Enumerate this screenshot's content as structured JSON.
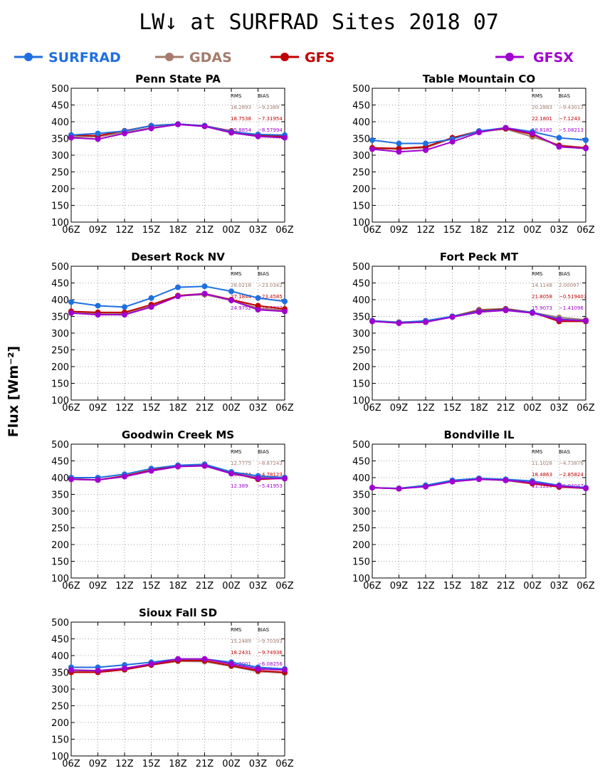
{
  "title": "LW↓ at SURFRAD Sites     2018 07",
  "ylabel": "Flux [Wm⁻²]",
  "series_colors": {
    "SURFRAD": "#1f6fe0",
    "GDAS": "#a47b6c",
    "GFS": "#c00000",
    "GFSX": "#a000d0"
  },
  "legend": [
    "SURFRAD",
    "GDAS",
    "GFS",
    "GFSX"
  ],
  "stats_headers": [
    "RMS",
    "BIAS"
  ],
  "chart_data": [
    {
      "type": "line",
      "title": "Penn State PA",
      "categories": [
        "06Z",
        "09Z",
        "12Z",
        "15Z",
        "18Z",
        "21Z",
        "00Z",
        "03Z",
        "06Z"
      ],
      "ylim": [
        100,
        500
      ],
      "yticks": [
        100,
        150,
        200,
        250,
        300,
        350,
        400,
        450,
        500
      ],
      "grid": true,
      "series": [
        {
          "name": "SURFRAD",
          "values": [
            360,
            365,
            372,
            388,
            393,
            388,
            370,
            362,
            360
          ]
        },
        {
          "name": "GDAS",
          "values": [
            355,
            355,
            368,
            382,
            392,
            387,
            370,
            357,
            354
          ]
        },
        {
          "name": "GFS",
          "values": [
            360,
            358,
            373,
            388,
            393,
            388,
            372,
            358,
            357
          ]
        },
        {
          "name": "GFSX",
          "values": [
            352,
            348,
            365,
            380,
            392,
            386,
            367,
            356,
            352
          ]
        }
      ],
      "stats": [
        {
          "rms": "18.2893",
          "bias": "−9.2389"
        },
        {
          "rms": "18.7538",
          "bias": "−7.31954"
        },
        {
          "rms": "15.8854",
          "bias": "−8.57994"
        }
      ]
    },
    {
      "type": "line",
      "title": "Table Mountain CO",
      "categories": [
        "06Z",
        "09Z",
        "12Z",
        "15Z",
        "18Z",
        "21Z",
        "00Z",
        "03Z",
        "06Z"
      ],
      "ylim": [
        100,
        500
      ],
      "yticks": [
        100,
        150,
        200,
        250,
        300,
        350,
        400,
        450,
        500
      ],
      "grid": true,
      "series": [
        {
          "name": "SURFRAD",
          "values": [
            345,
            335,
            335,
            348,
            372,
            382,
            370,
            352,
            345
          ]
        },
        {
          "name": "GDAS",
          "values": [
            320,
            318,
            322,
            350,
            370,
            378,
            355,
            330,
            322
          ]
        },
        {
          "name": "GFS",
          "values": [
            322,
            320,
            325,
            352,
            372,
            380,
            362,
            328,
            322
          ]
        },
        {
          "name": "GFSX",
          "values": [
            318,
            310,
            315,
            340,
            368,
            382,
            365,
            325,
            320
          ]
        }
      ],
      "stats": [
        {
          "rms": "20.2883",
          "bias": "−9.43013"
        },
        {
          "rms": "22.1801",
          "bias": "−7.1243"
        },
        {
          "rms": "18.8182",
          "bias": "−5.08213"
        }
      ]
    },
    {
      "type": "line",
      "title": "Desert Rock NV",
      "categories": [
        "06Z",
        "09Z",
        "12Z",
        "15Z",
        "18Z",
        "21Z",
        "00Z",
        "03Z",
        "06Z"
      ],
      "ylim": [
        100,
        500
      ],
      "yticks": [
        100,
        150,
        200,
        250,
        300,
        350,
        400,
        450,
        500
      ],
      "grid": true,
      "series": [
        {
          "name": "SURFRAD",
          "values": [
            393,
            382,
            378,
            405,
            437,
            440,
            425,
            405,
            395
          ]
        },
        {
          "name": "GDAS",
          "values": [
            365,
            358,
            358,
            380,
            412,
            415,
            398,
            375,
            368
          ]
        },
        {
          "name": "GFS",
          "values": [
            365,
            362,
            362,
            385,
            412,
            418,
            400,
            382,
            372
          ]
        },
        {
          "name": "GFSX",
          "values": [
            360,
            355,
            355,
            378,
            410,
            418,
            398,
            370,
            365
          ]
        }
      ],
      "stats": [
        {
          "rms": "28.0218",
          "bias": "−23.0342"
        },
        {
          "rms": "27.1844",
          "bias": "−23.4585"
        },
        {
          "rms": "24.9752",
          "bias": "−18.1037"
        }
      ]
    },
    {
      "type": "line",
      "title": "Fort Peck MT",
      "categories": [
        "06Z",
        "09Z",
        "12Z",
        "15Z",
        "18Z",
        "21Z",
        "00Z",
        "03Z",
        "06Z"
      ],
      "ylim": [
        100,
        500
      ],
      "yticks": [
        100,
        150,
        200,
        250,
        300,
        350,
        400,
        450,
        500
      ],
      "grid": true,
      "series": [
        {
          "name": "SURFRAD",
          "values": [
            337,
            332,
            337,
            350,
            365,
            370,
            362,
            342,
            337
          ]
        },
        {
          "name": "GDAS",
          "values": [
            337,
            333,
            335,
            350,
            370,
            373,
            362,
            347,
            340
          ]
        },
        {
          "name": "GFS",
          "values": [
            337,
            330,
            333,
            350,
            367,
            372,
            362,
            335,
            335
          ]
        },
        {
          "name": "GFSX",
          "values": [
            335,
            330,
            333,
            348,
            363,
            368,
            360,
            340,
            337
          ]
        }
      ],
      "stats": [
        {
          "rms": "14.1148",
          "bias": "2.00097"
        },
        {
          "rms": "21.8058",
          "bias": "−0.519407"
        },
        {
          "rms": "15.9073",
          "bias": "−1.41096"
        }
      ]
    },
    {
      "type": "line",
      "title": "Goodwin Creek MS",
      "categories": [
        "06Z",
        "09Z",
        "12Z",
        "15Z",
        "18Z",
        "21Z",
        "00Z",
        "03Z",
        "06Z"
      ],
      "ylim": [
        100,
        500
      ],
      "yticks": [
        100,
        150,
        200,
        250,
        300,
        350,
        400,
        450,
        500
      ],
      "grid": true,
      "series": [
        {
          "name": "SURFRAD",
          "values": [
            400,
            400,
            410,
            427,
            437,
            440,
            417,
            405,
            400
          ]
        },
        {
          "name": "GDAS",
          "values": [
            397,
            393,
            405,
            422,
            435,
            435,
            415,
            400,
            400
          ]
        },
        {
          "name": "GFS",
          "values": [
            395,
            393,
            405,
            422,
            435,
            437,
            415,
            395,
            398
          ]
        },
        {
          "name": "GFSX",
          "values": [
            395,
            393,
            403,
            420,
            433,
            435,
            412,
            398,
            397
          ]
        }
      ],
      "stats": [
        {
          "rms": "12.7775",
          "bias": "−8.87243"
        },
        {
          "rms": "13.7034",
          "bias": "−4.78123"
        },
        {
          "rms": "12.389",
          "bias": "−5.41953"
        }
      ]
    },
    {
      "type": "line",
      "title": "Bondville IL",
      "categories": [
        "06Z",
        "09Z",
        "12Z",
        "15Z",
        "18Z",
        "21Z",
        "00Z",
        "03Z",
        "06Z"
      ],
      "ylim": [
        100,
        500
      ],
      "yticks": [
        100,
        150,
        200,
        250,
        300,
        350,
        400,
        450,
        500
      ],
      "grid": true,
      "series": [
        {
          "name": "SURFRAD",
          "values": [
            370,
            368,
            377,
            392,
            398,
            395,
            390,
            377,
            370
          ]
        },
        {
          "name": "GDAS",
          "values": [
            370,
            367,
            375,
            390,
            397,
            392,
            385,
            375,
            370
          ]
        },
        {
          "name": "GFS",
          "values": [
            370,
            367,
            375,
            390,
            397,
            392,
            382,
            372,
            368
          ]
        },
        {
          "name": "GFSX",
          "values": [
            370,
            367,
            373,
            388,
            395,
            392,
            385,
            375,
            368
          ]
        }
      ],
      "stats": [
        {
          "rms": "11.1028",
          "bias": "−4.73876"
        },
        {
          "rms": "18.4863",
          "bias": "−2.85824"
        },
        {
          "rms": "11.1225",
          "bias": "−5.04047"
        }
      ]
    },
    {
      "type": "line",
      "title": "Sioux Fall SD",
      "categories": [
        "06Z",
        "09Z",
        "12Z",
        "15Z",
        "18Z",
        "21Z",
        "00Z",
        "03Z",
        "06Z"
      ],
      "ylim": [
        100,
        500
      ],
      "yticks": [
        100,
        150,
        200,
        250,
        300,
        350,
        400,
        450,
        500
      ],
      "grid": true,
      "series": [
        {
          "name": "SURFRAD",
          "values": [
            365,
            365,
            372,
            380,
            390,
            390,
            380,
            365,
            360
          ]
        },
        {
          "name": "GDAS",
          "values": [
            352,
            352,
            358,
            372,
            383,
            382,
            368,
            352,
            348
          ]
        },
        {
          "name": "GFS",
          "values": [
            350,
            350,
            358,
            372,
            385,
            385,
            370,
            355,
            350
          ]
        },
        {
          "name": "GFSX",
          "values": [
            357,
            355,
            362,
            375,
            390,
            390,
            375,
            360,
            357
          ]
        }
      ],
      "stats": [
        {
          "rms": "15.2489",
          "bias": "−9.70393"
        },
        {
          "rms": "18.2431",
          "bias": "−9.74936"
        },
        {
          "rms": "11.2001",
          "bias": "−6.08256"
        }
      ]
    }
  ]
}
